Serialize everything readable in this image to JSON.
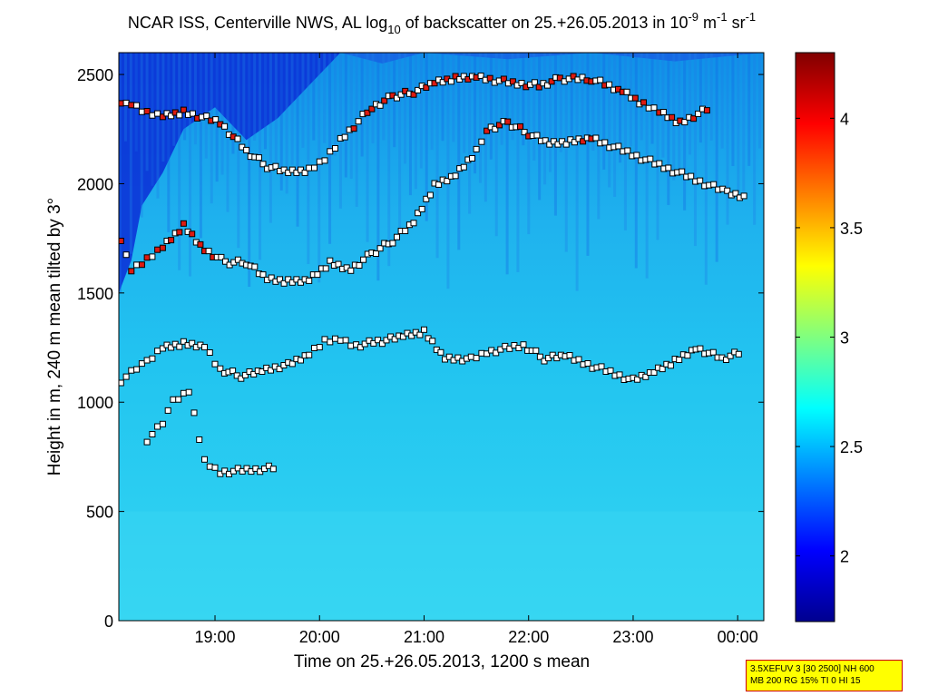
{
  "chart_data": {
    "type": "heatmap",
    "title": {
      "part1": "NCAR ISS, Centerville NWS, AL log",
      "sub1": "10",
      "part2": " of backscatter on 25.+26.05.2013 in 10",
      "sup1": "-9",
      "part3": " m",
      "sup2": "-1",
      "part4": " sr",
      "sup3": "-1"
    },
    "xlabel": "Time on 25.+26.05.2013, 1200 s mean",
    "ylabel": "Height in m, 240 m mean tilted by 3°",
    "x_range_hours": [
      18.08,
      24.25
    ],
    "x_ticks": [
      {
        "hour": 19,
        "label": "19:00"
      },
      {
        "hour": 20,
        "label": "20:00"
      },
      {
        "hour": 21,
        "label": "21:00"
      },
      {
        "hour": 22,
        "label": "22:00"
      },
      {
        "hour": 23,
        "label": "23:00"
      },
      {
        "hour": 24,
        "label": "00:00"
      }
    ],
    "ylim": [
      0,
      2600
    ],
    "y_ticks": [
      {
        "value": 0,
        "label": "0"
      },
      {
        "value": 500,
        "label": "500"
      },
      {
        "value": 1000,
        "label": "1000"
      },
      {
        "value": 1500,
        "label": "1500"
      },
      {
        "value": 2000,
        "label": "2000"
      },
      {
        "value": 2500,
        "label": "2500"
      }
    ],
    "colorbar": {
      "range": [
        1.7,
        4.3
      ],
      "ticks": [
        {
          "value": 2,
          "label": "2"
        },
        {
          "value": 2.5,
          "label": "2.5"
        },
        {
          "value": 3,
          "label": "3"
        },
        {
          "value": 3.5,
          "label": "3.5"
        },
        {
          "value": 4,
          "label": "4"
        }
      ],
      "colormap": "jet"
    },
    "layer_series": [
      {
        "name": "ml_upper",
        "color": "#ffffff",
        "points": [
          [
            18.1,
            2380
          ],
          [
            18.2,
            2360
          ],
          [
            18.35,
            2320
          ],
          [
            18.5,
            2310
          ],
          [
            18.7,
            2330
          ],
          [
            19.05,
            2280
          ],
          [
            19.3,
            2150
          ],
          [
            19.5,
            2080
          ],
          [
            19.7,
            2050
          ],
          [
            19.9,
            2060
          ],
          [
            20.05,
            2110
          ],
          [
            20.2,
            2200
          ],
          [
            20.5,
            2350
          ],
          [
            20.7,
            2400
          ],
          [
            20.9,
            2420
          ],
          [
            21.1,
            2460
          ],
          [
            21.3,
            2480
          ],
          [
            21.5,
            2490
          ],
          [
            21.85,
            2460
          ],
          [
            22.1,
            2450
          ],
          [
            22.3,
            2480
          ],
          [
            22.6,
            2480
          ],
          [
            22.9,
            2420
          ],
          [
            23.1,
            2360
          ],
          [
            23.25,
            2330
          ],
          [
            23.45,
            2280
          ],
          [
            23.75,
            2350
          ]
        ]
      },
      {
        "name": "ml_middle",
        "color": "#ffffff",
        "points": [
          [
            18.1,
            1750
          ],
          [
            18.2,
            1600
          ],
          [
            18.35,
            1650
          ],
          [
            18.5,
            1710
          ],
          [
            18.7,
            1810
          ],
          [
            18.9,
            1700
          ],
          [
            19.1,
            1640
          ],
          [
            19.3,
            1640
          ],
          [
            19.5,
            1560
          ],
          [
            19.7,
            1550
          ],
          [
            19.9,
            1560
          ],
          [
            20.1,
            1640
          ],
          [
            20.3,
            1610
          ],
          [
            20.5,
            1680
          ],
          [
            20.7,
            1740
          ],
          [
            20.9,
            1820
          ],
          [
            21.1,
            1990
          ],
          [
            21.3,
            2040
          ],
          [
            21.5,
            2150
          ],
          [
            21.6,
            2250
          ],
          [
            21.8,
            2280
          ],
          [
            22.0,
            2230
          ],
          [
            22.2,
            2180
          ],
          [
            22.4,
            2190
          ],
          [
            22.6,
            2210
          ],
          [
            23.9,
            1960
          ],
          [
            24.1,
            1940
          ]
        ]
      },
      {
        "name": "ml_lower",
        "color": "#ffffff",
        "points": [
          [
            18.1,
            1100
          ],
          [
            18.25,
            1150
          ],
          [
            18.35,
            1180
          ],
          [
            18.5,
            1250
          ],
          [
            18.7,
            1270
          ],
          [
            18.9,
            1260
          ],
          [
            19.05,
            1150
          ],
          [
            19.25,
            1120
          ],
          [
            19.45,
            1140
          ],
          [
            19.7,
            1170
          ],
          [
            19.9,
            1220
          ],
          [
            20.05,
            1280
          ],
          [
            20.2,
            1290
          ],
          [
            20.35,
            1260
          ],
          [
            20.6,
            1280
          ],
          [
            20.8,
            1300
          ],
          [
            21.0,
            1320
          ],
          [
            21.2,
            1200
          ],
          [
            21.45,
            1200
          ],
          [
            21.6,
            1230
          ],
          [
            21.95,
            1260
          ],
          [
            22.15,
            1200
          ],
          [
            22.35,
            1210
          ],
          [
            23.0,
            1100
          ],
          [
            23.2,
            1140
          ],
          [
            23.4,
            1190
          ],
          [
            23.6,
            1250
          ],
          [
            23.85,
            1200
          ],
          [
            24.05,
            1230
          ]
        ]
      },
      {
        "name": "ml_low",
        "color": "#ffffff",
        "points": [
          [
            18.35,
            830
          ],
          [
            18.5,
            900
          ],
          [
            18.6,
            1000
          ],
          [
            18.75,
            1050
          ],
          [
            18.9,
            730
          ],
          [
            19.05,
            680
          ],
          [
            19.6,
            700
          ]
        ]
      }
    ]
  },
  "info_box": {
    "line1": "3.5XEFUV 3 [30 2500] NH 600",
    "line2": "MB 200 RG 15% TI 0 HI 15"
  }
}
